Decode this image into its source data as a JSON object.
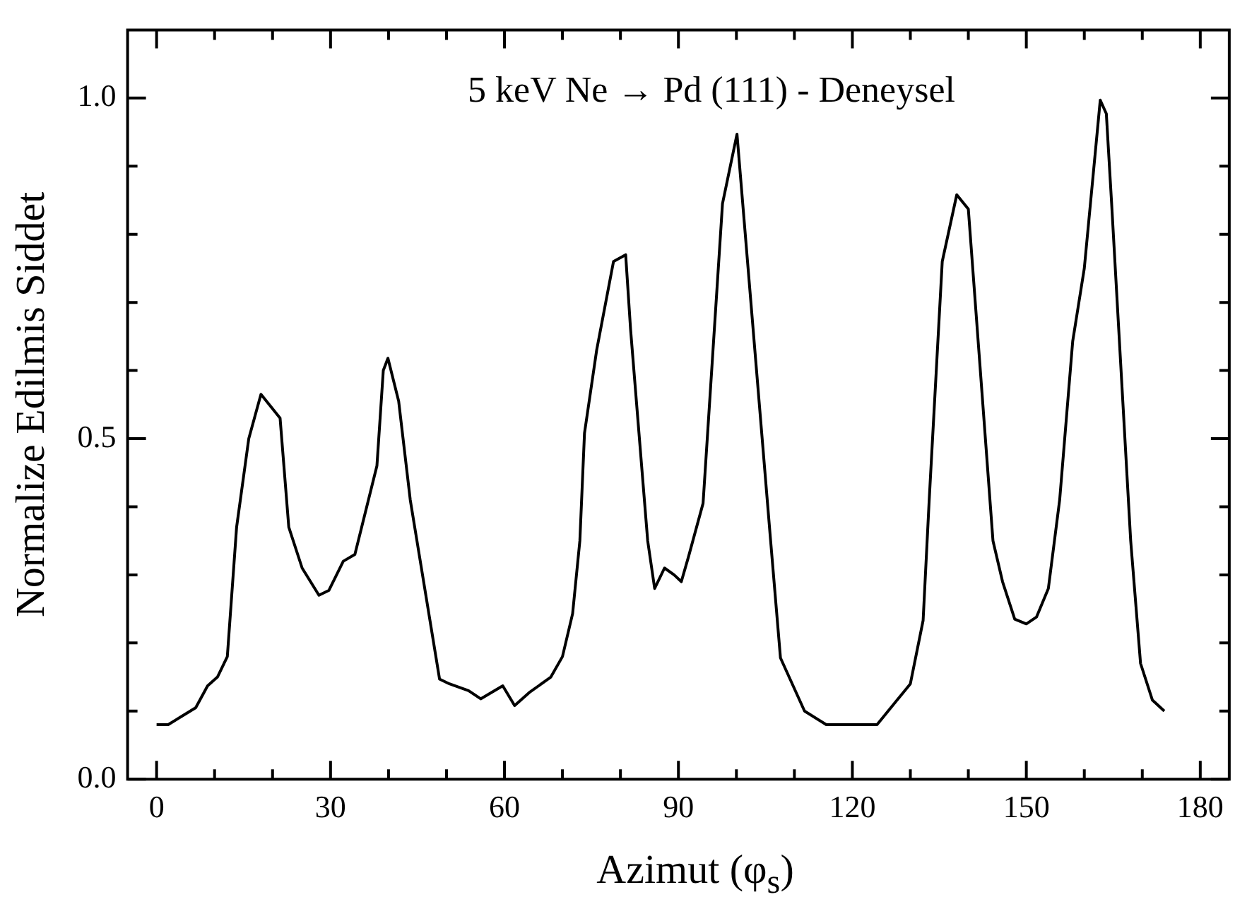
{
  "chart_data": {
    "type": "line",
    "xlabel": "Azimut (φ$_{s}$)",
    "ylabel": "Normalize Edilmis Siddet",
    "annotations": [
      "5 keV Ne → Pd (111) - Deneysel"
    ],
    "series": [
      {
        "color": "#000000",
        "x": [
          0,
          2,
          6.75,
          8.8,
          10.5,
          12.2,
          13.8,
          15.9,
          18,
          21.3,
          22.8,
          25.1,
          28,
          29.7,
          32.2,
          34.2,
          38,
          39.1,
          39.9,
          41.75,
          43.75,
          48.8,
          50.5,
          53.8,
          55.9,
          59.7,
          61.75,
          64.25,
          68,
          70,
          71.75,
          73,
          73.8,
          75.9,
          78.8,
          80.9,
          81.75,
          84.7,
          85.9,
          87.6,
          89.25,
          90.5,
          91.75,
          94.25,
          97.6,
          100.1,
          105.9,
          107.6,
          111.75,
          115.5,
          124.25,
          130,
          132.2,
          133.25,
          135.5,
          138,
          140,
          144.25,
          145.9,
          148,
          150,
          151.75,
          153.8,
          155.75,
          158,
          160,
          162.75,
          163.8,
          164.7,
          168,
          169.7,
          171.75,
          173.8
        ],
        "values": [
          0.08,
          0.08,
          0.105,
          0.137,
          0.15,
          0.18,
          0.37,
          0.5,
          0.565,
          0.53,
          0.37,
          0.31,
          0.27,
          0.277,
          0.32,
          0.33,
          0.46,
          0.6,
          0.618,
          0.555,
          0.41,
          0.147,
          0.14,
          0.13,
          0.118,
          0.137,
          0.108,
          0.127,
          0.15,
          0.18,
          0.243,
          0.35,
          0.508,
          0.63,
          0.76,
          0.77,
          0.66,
          0.35,
          0.28,
          0.31,
          0.3,
          0.29,
          0.327,
          0.405,
          0.845,
          0.947,
          0.35,
          0.178,
          0.1,
          0.08,
          0.08,
          0.14,
          0.233,
          0.41,
          0.76,
          0.858,
          0.837,
          0.35,
          0.29,
          0.235,
          0.228,
          0.238,
          0.28,
          0.41,
          0.643,
          0.75,
          0.997,
          0.977,
          0.847,
          0.35,
          0.17,
          0.116,
          0.1
        ]
      }
    ],
    "xlim": [
      -5,
      185
    ],
    "ylim": [
      0,
      1.1
    ],
    "xticks": [
      0,
      {
        "value": 10,
        "label": null
      },
      {
        "value": 20,
        "label": null
      },
      30,
      {
        "value": 40,
        "label": null
      },
      {
        "value": 50,
        "label": null
      },
      60,
      {
        "value": 70,
        "label": null
      },
      {
        "value": 80,
        "label": null
      },
      90,
      {
        "value": 100,
        "label": null
      },
      {
        "value": 110,
        "label": null
      },
      120,
      {
        "value": 130,
        "label": null
      },
      {
        "value": 140,
        "label": null
      },
      150,
      {
        "value": 160,
        "label": null
      },
      {
        "value": 170,
        "label": null
      },
      180
    ],
    "yticks": [
      {
        "value": 0,
        "label": "0.0"
      },
      {
        "value": 0.1,
        "label": null
      },
      {
        "value": 0.2,
        "label": null
      },
      {
        "value": 0.3,
        "label": null
      },
      {
        "value": 0.4,
        "label": null
      },
      {
        "value": 0.5,
        "label": "0.5"
      },
      {
        "value": 0.6,
        "label": null
      },
      {
        "value": 0.7,
        "label": null
      },
      {
        "value": 0.8,
        "label": null
      },
      {
        "value": 0.9,
        "label": null
      },
      {
        "value": 1,
        "label": "1.0"
      }
    ],
    "grid": false,
    "legend": false,
    "marker": "none",
    "line_style": "solid"
  }
}
